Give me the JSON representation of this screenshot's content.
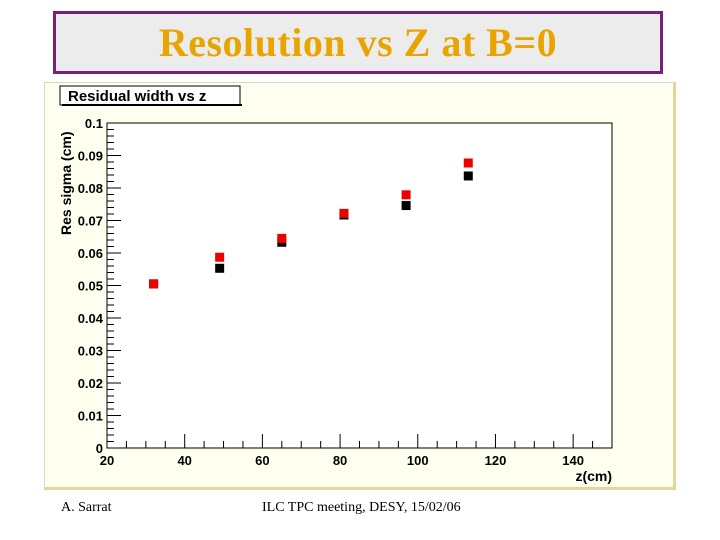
{
  "slide": {
    "title": "Resolution vs Z at B=0",
    "footer_left": "A. Sarrat",
    "footer_center": "ILC TPC meeting, DESY, 15/02/06"
  },
  "chart_data": {
    "type": "scatter",
    "title": "Residual width vs z",
    "xlabel": "z(cm)",
    "ylabel": "Res sigma (cm)",
    "xlim": [
      20,
      150
    ],
    "ylim": [
      0,
      0.1
    ],
    "x_ticks": [
      20,
      40,
      60,
      80,
      100,
      120,
      140
    ],
    "y_ticks": [
      0,
      0.01,
      0.02,
      0.03,
      0.04,
      0.05,
      0.06,
      0.07,
      0.08,
      0.09,
      0.1
    ],
    "y_tick_labels": [
      "0",
      "0.01",
      "0.02",
      "0.03",
      "0.04",
      "0.05",
      "0.06",
      "0.07",
      "0.08",
      "0.09",
      "0.1"
    ],
    "grid": false,
    "series": [
      {
        "color": "#000000",
        "x": [
          32,
          49,
          65,
          81,
          97,
          113
        ],
        "y": [
          0.0505,
          0.0553,
          0.0633,
          0.0717,
          0.0746,
          0.0837
        ]
      },
      {
        "color": "#ee0000",
        "x": [
          32,
          49,
          65,
          81,
          97,
          113
        ],
        "y": [
          0.0505,
          0.0587,
          0.0645,
          0.0722,
          0.0779,
          0.0877
        ]
      }
    ]
  }
}
